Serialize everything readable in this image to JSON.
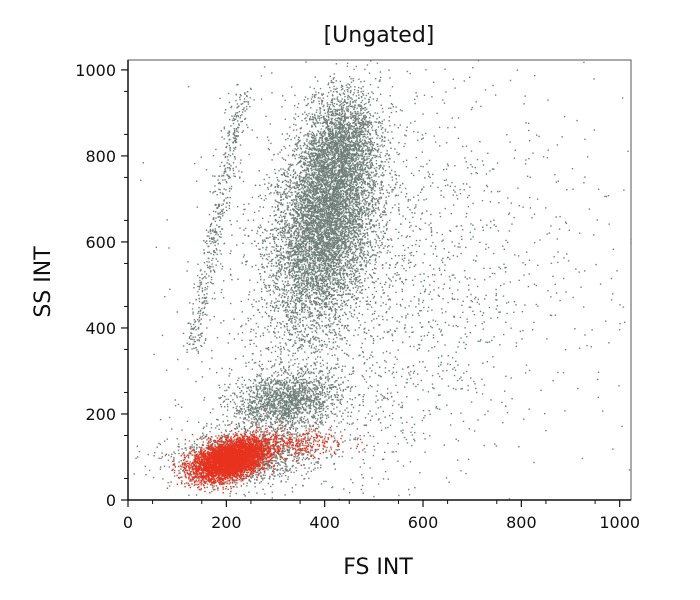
{
  "chart_data": {
    "type": "scatter",
    "title": "[Ungated]",
    "xlabel": "FS INT",
    "ylabel": "SS INT",
    "xlim": [
      0,
      1023
    ],
    "ylim": [
      0,
      1023
    ],
    "x_ticks": [
      0,
      200,
      400,
      600,
      800,
      1000
    ],
    "y_ticks": [
      0,
      200,
      400,
      600,
      800,
      1000
    ],
    "grid": false,
    "legend": "none",
    "series": [
      {
        "color": "#6f7f7a",
        "populations": [
          {
            "center": [
              400,
              650
            ],
            "spread": [
              55,
              120
            ],
            "count": 7000,
            "tilt": 0.35
          },
          {
            "center": [
              430,
              830
            ],
            "spread": [
              35,
              60
            ],
            "count": 1300,
            "tilt": 0.2
          },
          {
            "center": [
              320,
              230
            ],
            "spread": [
              55,
              35
            ],
            "count": 1600,
            "tilt": 0.2
          },
          {
            "center": [
              230,
              100
            ],
            "spread": [
              70,
              30
            ],
            "count": 1400,
            "tilt": 0.1
          },
          {
            "center": [
              470,
              400
            ],
            "spread": [
              160,
              230
            ],
            "count": 1500,
            "tilt": 0.3
          },
          {
            "center": [
              600,
              600
            ],
            "spread": [
              240,
              260
            ],
            "count": 700,
            "tilt": 0.0
          }
        ],
        "diagonal_streak": {
          "from": [
            130,
            350
          ],
          "to": [
            230,
            950
          ],
          "count": 500
        }
      },
      {
        "color": "#e8321e",
        "populations": [
          {
            "center": [
              205,
              95
            ],
            "spread": [
              38,
              22
            ],
            "count": 4200,
            "tilt": 0.45
          },
          {
            "center": [
              330,
              130
            ],
            "spread": [
              60,
              18
            ],
            "count": 350,
            "tilt": 0.2
          }
        ]
      }
    ]
  }
}
